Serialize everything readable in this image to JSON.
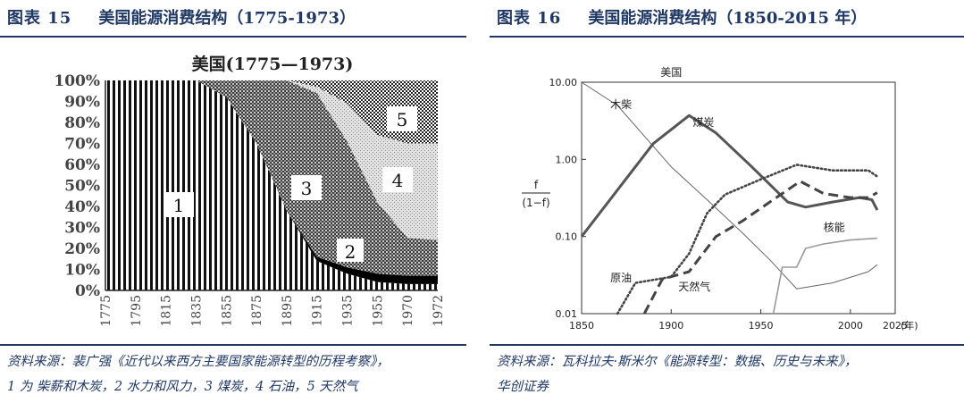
{
  "figure1": {
    "label": "图表 15",
    "title": "美国能源消费结构（1775-1973）",
    "source_line1": "资料来源：裴广强《近代以来西方主要国家能源转型的历程考察》，",
    "source_line2": "1 为 柴薪和木炭，2 水力和风力，3 煤炭，4 石油，5 天然气"
  },
  "figure2": {
    "label": "图表 16",
    "title": "美国能源消费结构（1850-2015 年）",
    "source_line1": "资料来源：瓦科拉夫·斯米尔《能源转型：数据、历史与未来》，",
    "source_line2": "华创证券"
  },
  "chart_data": [
    {
      "type": "area",
      "title": "美国(1775—1973)",
      "x": [
        1775,
        1795,
        1815,
        1835,
        1855,
        1875,
        1895,
        1915,
        1935,
        1955,
        1970,
        1972
      ],
      "ylim": [
        0,
        100
      ],
      "ytick_labels": [
        "0%",
        "10%",
        "20%",
        "30%",
        "40%",
        "50%",
        "60%",
        "70%",
        "80%",
        "90%",
        "100%"
      ],
      "xtick_labels": [
        "1775",
        "1795",
        "1815",
        "1835",
        "1855",
        "1875",
        "1895",
        "1915",
        "1935",
        "1955",
        "1970",
        "1972"
      ],
      "stacked": true,
      "series": [
        {
          "name": "1",
          "values": [
            100,
            100,
            100,
            100,
            92,
            70,
            38,
            14,
            8,
            4,
            3,
            3
          ]
        },
        {
          "name": "2",
          "values": [
            0,
            0,
            0,
            0,
            0,
            0,
            0,
            2,
            3,
            4,
            4,
            4
          ]
        },
        {
          "name": "3",
          "values": [
            0,
            0,
            0,
            0,
            8,
            30,
            62,
            78,
            60,
            34,
            18,
            17
          ]
        },
        {
          "name": "4",
          "values": [
            0,
            0,
            0,
            0,
            0,
            0,
            0,
            3,
            18,
            32,
            45,
            46
          ]
        },
        {
          "name": "5",
          "values": [
            0,
            0,
            0,
            0,
            0,
            0,
            0,
            3,
            11,
            26,
            30,
            30
          ]
        }
      ]
    },
    {
      "type": "line",
      "title": "美国",
      "x_unit": "(年)",
      "xlim": [
        1850,
        2025
      ],
      "ylim": [
        0.01,
        10
      ],
      "y_scale": "log",
      "ylabel_num": "f",
      "ylabel_den": "(1−f)",
      "xtick_labels": [
        "1850",
        "1900",
        "1950",
        "2000",
        "2025"
      ],
      "ytick_labels": [
        "0.01",
        "0.10",
        "1.00",
        "10.00"
      ],
      "ytick_values": [
        0.01,
        0.1,
        1,
        10
      ],
      "series": [
        {
          "name": "木柴",
          "style": "thin",
          "points": [
            [
              1850,
              10
            ],
            [
              1870,
              5
            ],
            [
              1885,
              2
            ],
            [
              1900,
              0.8
            ],
            [
              1920,
              0.3
            ],
            [
              1940,
              0.11
            ],
            [
              1955,
              0.05
            ],
            [
              1970,
              0.021
            ],
            [
              1990,
              0.025
            ],
            [
              2010,
              0.035
            ],
            [
              2015,
              0.043
            ]
          ]
        },
        {
          "name": "煤炭",
          "style": "thick",
          "points": [
            [
              1850,
              0.1
            ],
            [
              1870,
              0.4
            ],
            [
              1890,
              1.6
            ],
            [
              1910,
              3.7
            ],
            [
              1925,
              2.2
            ],
            [
              1945,
              0.8
            ],
            [
              1965,
              0.28
            ],
            [
              1975,
              0.24
            ],
            [
              1990,
              0.28
            ],
            [
              2005,
              0.32
            ],
            [
              2012,
              0.3
            ],
            [
              2015,
              0.22
            ]
          ]
        },
        {
          "name": "原油",
          "style": "dotted",
          "points": [
            [
              1870,
              0.01
            ],
            [
              1880,
              0.025
            ],
            [
              1900,
              0.03
            ],
            [
              1910,
              0.06
            ],
            [
              1920,
              0.2
            ],
            [
              1930,
              0.35
            ],
            [
              1950,
              0.55
            ],
            [
              1970,
              0.85
            ],
            [
              1990,
              0.72
            ],
            [
              2010,
              0.72
            ],
            [
              2015,
              0.6
            ]
          ]
        },
        {
          "name": "天然气",
          "style": "dashed",
          "points": [
            [
              1885,
              0.01
            ],
            [
              1895,
              0.028
            ],
            [
              1910,
              0.035
            ],
            [
              1925,
              0.1
            ],
            [
              1940,
              0.16
            ],
            [
              1955,
              0.28
            ],
            [
              1972,
              0.52
            ],
            [
              1985,
              0.36
            ],
            [
              2000,
              0.32
            ],
            [
              2010,
              0.32
            ],
            [
              2015,
              0.37
            ]
          ]
        },
        {
          "name": "核能",
          "style": "thin-gray",
          "points": [
            [
              1957,
              0.01
            ],
            [
              1962,
              0.04
            ],
            [
              1970,
              0.04
            ],
            [
              1975,
              0.07
            ],
            [
              1985,
              0.08
            ],
            [
              2000,
              0.09
            ],
            [
              2015,
              0.095
            ]
          ]
        }
      ],
      "labels": [
        {
          "text": "木柴",
          "x": 1866,
          "y": 4.6
        },
        {
          "text": "煤炭",
          "x": 1912,
          "y": 2.7
        },
        {
          "text": "核能",
          "x": 1985,
          "y": 0.118
        },
        {
          "text": "原油",
          "x": 1866,
          "y": 0.026
        },
        {
          "text": "天然气",
          "x": 1904,
          "y": 0.02
        }
      ]
    }
  ]
}
